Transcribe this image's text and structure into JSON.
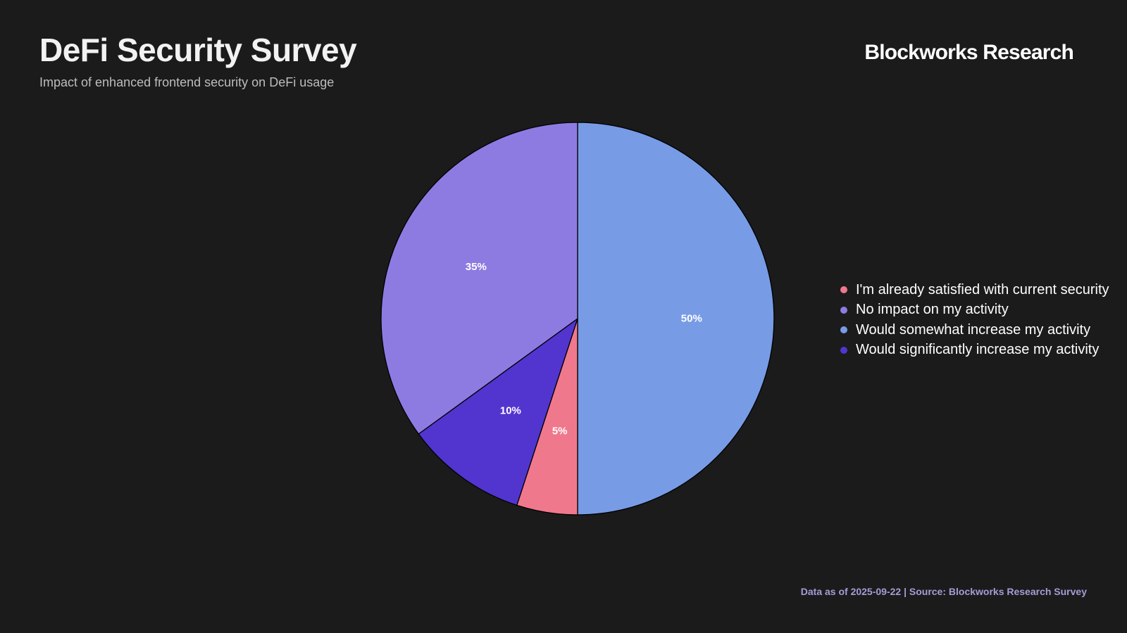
{
  "header": {
    "title": "DeFi Security Survey",
    "subtitle": "Impact of enhanced frontend security on DeFi usage",
    "brand": "Blockworks Research"
  },
  "chart_data": {
    "type": "pie",
    "title": "DeFi Security Survey",
    "subtitle": "Impact of enhanced frontend security on DeFi usage",
    "legend_position": "right",
    "slices": [
      {
        "label": "Would somewhat increase my activity",
        "value": 50,
        "display": "50%",
        "color": "#789be6"
      },
      {
        "label": "I'm already satisfied with current security",
        "value": 5,
        "display": "5%",
        "color": "#f0788c"
      },
      {
        "label": "Would significantly increase my activity",
        "value": 10,
        "display": "10%",
        "color": "#5235cf"
      },
      {
        "label": "No impact on my activity",
        "value": 35,
        "display": "35%",
        "color": "#8e7be2"
      }
    ],
    "legend": [
      {
        "label": "I'm already satisfied with current security",
        "color": "#f0788c"
      },
      {
        "label": "No impact on my activity",
        "color": "#8e7be2"
      },
      {
        "label": "Would somewhat increase my activity",
        "color": "#789be6"
      },
      {
        "label": "Would significantly increase my activity",
        "color": "#5235cf"
      }
    ]
  },
  "footer": {
    "source": "Data as of 2025-09-22 | Source: Blockworks Research Survey"
  },
  "colors": {
    "background": "#1b1b1c",
    "slice_border": "#000000",
    "footer_text": "#a89bd6"
  }
}
